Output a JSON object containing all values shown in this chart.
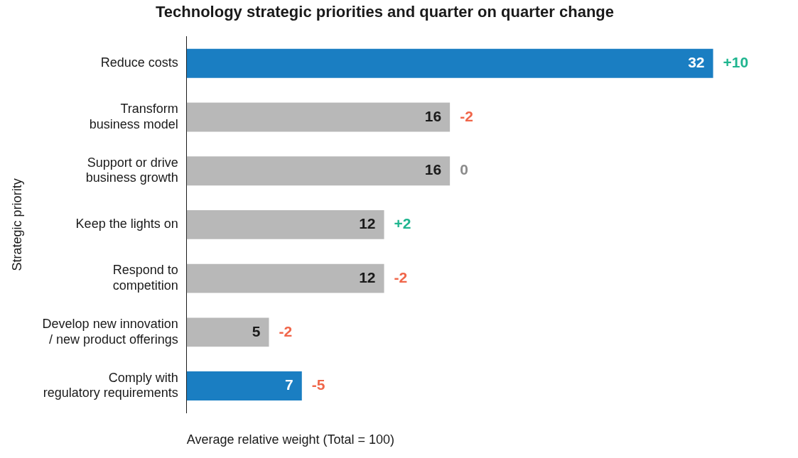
{
  "chart_data": {
    "type": "bar",
    "orientation": "horizontal",
    "title": "Technology strategic priorities and quarter on quarter change",
    "xlabel": "Average relative weight (Total = 100)",
    "ylabel": "Strategic priority",
    "categories": [
      "Reduce costs",
      "Transform\nbusiness model",
      "Support or drive\nbusiness growth",
      "Keep the lights on",
      "Respond to\ncompetition",
      "Develop new innovation\n/ new product offerings",
      "Comply with\nregulatory requirements"
    ],
    "values": [
      32,
      16,
      16,
      12,
      12,
      5,
      7
    ],
    "colors": [
      "#1a7ec2",
      "#b8b8b8",
      "#b8b8b8",
      "#b8b8b8",
      "#b8b8b8",
      "#b8b8b8",
      "#1a7ec2"
    ],
    "data_labels": true,
    "annotations": [
      {
        "text": "+10",
        "x": 32,
        "y": "Reduce costs"
      },
      {
        "text": "-2",
        "x": 16,
        "y": "Transform\nbusiness model"
      },
      {
        "text": "0",
        "x": 16,
        "y": "Support or drive\nbusiness growth"
      },
      {
        "text": "+2",
        "x": 12,
        "y": "Keep the lights on"
      },
      {
        "text": "-2",
        "x": 12,
        "y": "Respond to\ncompetition"
      },
      {
        "text": "-2",
        "x": 5,
        "y": "Develop new innovation\n/ new product offerings"
      },
      {
        "text": "-5",
        "x": 7,
        "y": "Comply with\nregulatory requirements"
      }
    ],
    "grid": false,
    "legend": false
  }
}
